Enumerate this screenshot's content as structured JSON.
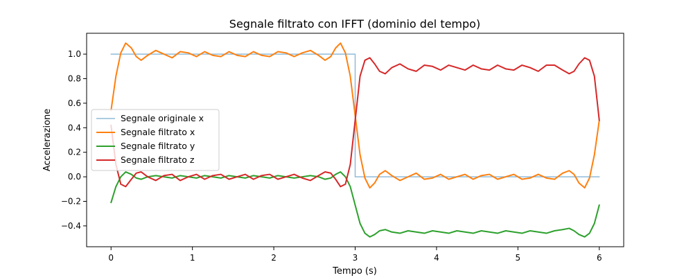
{
  "chart_data": {
    "type": "line",
    "title": "Segnale filtrato con IFFT (dominio del tempo)",
    "xlabel": "Tempo (s)",
    "ylabel": "Accelerazione",
    "xlim": [
      -0.3,
      6.3
    ],
    "ylim": [
      -0.57,
      1.17
    ],
    "xticks": [
      0,
      1,
      2,
      3,
      4,
      5,
      6
    ],
    "xtick_labels": [
      "0",
      "1",
      "2",
      "3",
      "4",
      "5",
      "6"
    ],
    "yticks": [
      -0.4,
      -0.2,
      0.0,
      0.2,
      0.4,
      0.6,
      0.8,
      1.0
    ],
    "ytick_labels": [
      "−0.4",
      "−0.2",
      "0.0",
      "0.2",
      "0.4",
      "0.6",
      "0.8",
      "1.0"
    ],
    "grid": false,
    "legend_position": "center-left",
    "series": [
      {
        "name": "Segnale originale x",
        "color": "#1f77b4",
        "alpha": 0.5,
        "linewidth": 1.5,
        "x": [
          0,
          3,
          3,
          6
        ],
        "y": [
          1.0,
          1.0,
          0.0,
          0.0
        ]
      },
      {
        "name": "Segnale filtrato x",
        "color": "#ff7f0e",
        "linewidth": 2,
        "x": [
          0,
          0.06,
          0.12,
          0.18,
          0.25,
          0.31,
          0.37,
          0.45,
          0.55,
          0.65,
          0.75,
          0.85,
          0.95,
          1.05,
          1.15,
          1.25,
          1.35,
          1.45,
          1.55,
          1.65,
          1.75,
          1.85,
          1.95,
          2.05,
          2.15,
          2.25,
          2.35,
          2.45,
          2.55,
          2.63,
          2.7,
          2.76,
          2.82,
          2.88,
          2.94,
          3.0,
          3.06,
          3.12,
          3.18,
          3.24,
          3.3,
          3.37,
          3.45,
          3.55,
          3.65,
          3.75,
          3.85,
          3.95,
          4.05,
          4.15,
          4.25,
          4.35,
          4.45,
          4.55,
          4.65,
          4.75,
          4.85,
          4.95,
          5.05,
          5.15,
          5.25,
          5.35,
          5.45,
          5.55,
          5.63,
          5.69,
          5.75,
          5.82,
          5.88,
          5.94,
          6.0
        ],
        "y": [
          0.54,
          0.82,
          1.01,
          1.09,
          1.05,
          0.98,
          0.95,
          0.99,
          1.03,
          1.0,
          0.97,
          1.02,
          1.01,
          0.98,
          1.02,
          0.99,
          0.98,
          1.02,
          0.99,
          0.98,
          1.02,
          0.99,
          0.98,
          1.02,
          1.01,
          0.98,
          1.01,
          1.03,
          0.99,
          0.95,
          0.98,
          1.05,
          1.09,
          1.01,
          0.82,
          0.5,
          0.18,
          -0.01,
          -0.09,
          -0.05,
          0.02,
          0.05,
          0.01,
          -0.03,
          0.0,
          0.03,
          -0.02,
          -0.01,
          0.02,
          -0.02,
          0.0,
          0.02,
          -0.02,
          0.01,
          0.02,
          -0.02,
          0.0,
          0.02,
          -0.02,
          -0.01,
          0.02,
          -0.01,
          -0.02,
          0.03,
          0.05,
          0.02,
          -0.05,
          -0.09,
          -0.01,
          0.18,
          0.46
        ]
      },
      {
        "name": "Segnale filtrato y",
        "color": "#2ca02c",
        "linewidth": 2,
        "x": [
          0,
          0.06,
          0.12,
          0.18,
          0.25,
          0.31,
          0.37,
          0.45,
          0.55,
          0.65,
          0.75,
          0.85,
          0.95,
          1.05,
          1.15,
          1.25,
          1.35,
          1.45,
          1.55,
          1.65,
          1.75,
          1.85,
          1.95,
          2.05,
          2.15,
          2.25,
          2.35,
          2.45,
          2.55,
          2.63,
          2.7,
          2.76,
          2.82,
          2.88,
          2.94,
          3.0,
          3.06,
          3.12,
          3.18,
          3.24,
          3.3,
          3.37,
          3.45,
          3.55,
          3.65,
          3.75,
          3.85,
          3.95,
          4.05,
          4.15,
          4.25,
          4.35,
          4.45,
          4.55,
          4.65,
          4.75,
          4.85,
          4.95,
          5.05,
          5.15,
          5.25,
          5.35,
          5.45,
          5.55,
          5.63,
          5.69,
          5.75,
          5.82,
          5.88,
          5.94,
          6.0
        ],
        "y": [
          -0.21,
          -0.08,
          0.0,
          0.04,
          0.02,
          -0.01,
          -0.02,
          0.0,
          0.01,
          0.0,
          -0.01,
          0.01,
          0.0,
          -0.01,
          0.01,
          0.0,
          -0.01,
          0.01,
          0.0,
          -0.01,
          0.01,
          0.0,
          -0.01,
          0.01,
          0.0,
          -0.01,
          0.0,
          0.01,
          0.0,
          -0.02,
          -0.01,
          0.02,
          0.04,
          0.0,
          -0.08,
          -0.23,
          -0.38,
          -0.46,
          -0.49,
          -0.47,
          -0.44,
          -0.43,
          -0.45,
          -0.46,
          -0.44,
          -0.45,
          -0.46,
          -0.44,
          -0.45,
          -0.46,
          -0.44,
          -0.45,
          -0.46,
          -0.44,
          -0.45,
          -0.46,
          -0.44,
          -0.45,
          -0.46,
          -0.44,
          -0.45,
          -0.46,
          -0.44,
          -0.43,
          -0.42,
          -0.44,
          -0.47,
          -0.49,
          -0.46,
          -0.38,
          -0.23
        ]
      },
      {
        "name": "Segnale filtrato z",
        "color": "#d62728",
        "linewidth": 2,
        "x": [
          0,
          0.06,
          0.12,
          0.18,
          0.25,
          0.31,
          0.37,
          0.45,
          0.55,
          0.65,
          0.75,
          0.85,
          0.95,
          1.05,
          1.15,
          1.25,
          1.35,
          1.45,
          1.55,
          1.65,
          1.75,
          1.85,
          1.95,
          2.05,
          2.15,
          2.25,
          2.35,
          2.45,
          2.55,
          2.63,
          2.7,
          2.76,
          2.82,
          2.88,
          2.94,
          3.0,
          3.06,
          3.12,
          3.18,
          3.24,
          3.3,
          3.37,
          3.45,
          3.55,
          3.65,
          3.75,
          3.85,
          3.95,
          4.05,
          4.15,
          4.25,
          4.35,
          4.45,
          4.55,
          4.65,
          4.75,
          4.85,
          4.95,
          5.05,
          5.15,
          5.25,
          5.35,
          5.45,
          5.55,
          5.63,
          5.69,
          5.75,
          5.82,
          5.88,
          5.94,
          6.0
        ],
        "y": [
          0.42,
          0.1,
          -0.06,
          -0.08,
          -0.02,
          0.03,
          0.04,
          0.0,
          -0.03,
          0.01,
          0.02,
          -0.03,
          0.0,
          0.02,
          -0.02,
          0.01,
          0.02,
          -0.02,
          0.0,
          0.02,
          -0.02,
          0.01,
          0.02,
          -0.02,
          0.0,
          0.02,
          -0.01,
          -0.03,
          0.01,
          0.04,
          0.03,
          -0.02,
          -0.08,
          -0.06,
          0.1,
          0.46,
          0.82,
          0.95,
          0.97,
          0.92,
          0.86,
          0.84,
          0.89,
          0.92,
          0.88,
          0.86,
          0.91,
          0.9,
          0.87,
          0.91,
          0.89,
          0.87,
          0.91,
          0.88,
          0.87,
          0.91,
          0.88,
          0.87,
          0.91,
          0.89,
          0.86,
          0.91,
          0.91,
          0.87,
          0.84,
          0.86,
          0.92,
          0.97,
          0.95,
          0.82,
          0.46
        ]
      }
    ]
  }
}
